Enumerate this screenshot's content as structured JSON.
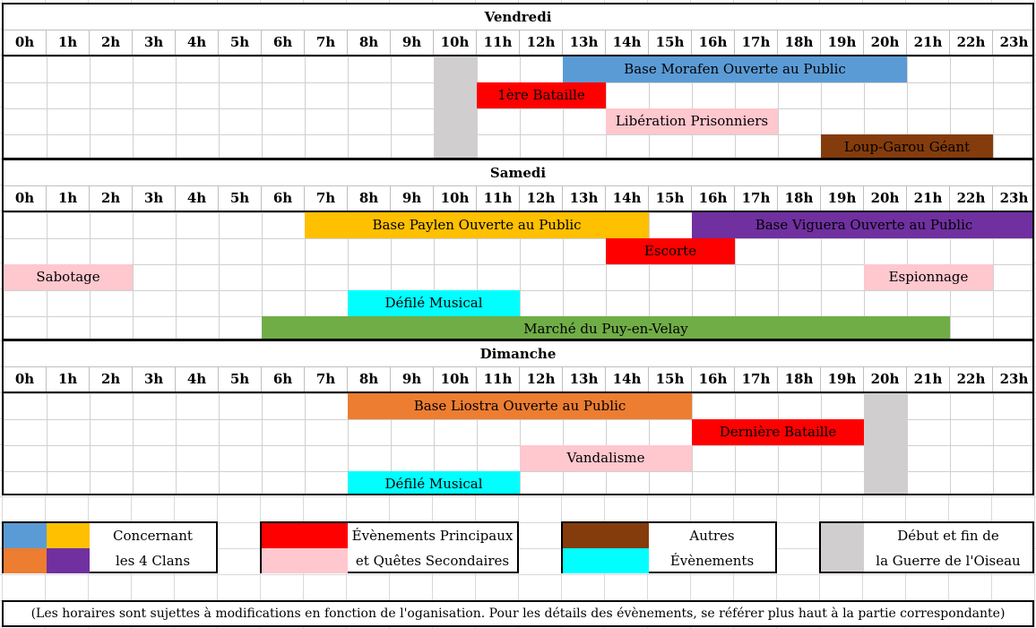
{
  "hours": [
    "0h",
    "1h",
    "2h",
    "3h",
    "4h",
    "5h",
    "6h",
    "7h",
    "8h",
    "9h",
    "10h",
    "11h",
    "12h",
    "13h",
    "14h",
    "15h",
    "16h",
    "17h",
    "18h",
    "19h",
    "20h",
    "21h",
    "22h",
    "23h"
  ],
  "colors": {
    "clan_blue": "#5b9bd5",
    "clan_yellow": "#ffc000",
    "clan_orange": "#ed7d31",
    "clan_purple": "#7030a0",
    "main_red": "#ff0000",
    "side_pink": "#ffc7ce",
    "other_brown": "#843c0c",
    "other_cyan": "#00ffff",
    "war_gray": "#d0cece",
    "market_green": "#70ad47"
  },
  "days": [
    {
      "name": "Vendredi",
      "rows": 4,
      "events": [
        {
          "label": "",
          "start": 10,
          "end": 11,
          "row": 0,
          "rows": 4,
          "color": "#d0cece"
        },
        {
          "label": "Base Morafen Ouverte au Public",
          "start": 13,
          "end": 21,
          "row": 0,
          "color": "#5b9bd5"
        },
        {
          "label": "1ère Bataille",
          "start": 11,
          "end": 14,
          "row": 1,
          "color": "#ff0000"
        },
        {
          "label": "Libération Prisonniers",
          "start": 14,
          "end": 18,
          "row": 2,
          "color": "#ffc7ce"
        },
        {
          "label": "Loup-Garou Géant",
          "start": 19,
          "end": 23,
          "row": 3,
          "color": "#843c0c"
        }
      ]
    },
    {
      "name": "Samedi",
      "rows": 5,
      "events": [
        {
          "label": "Base Paylen Ouverte au Public",
          "start": 7,
          "end": 15,
          "row": 0,
          "color": "#ffc000"
        },
        {
          "label": "Base Viguera Ouverte au Public",
          "start": 16,
          "end": 24,
          "row": 0,
          "color": "#7030a0"
        },
        {
          "label": "Escorte",
          "start": 14,
          "end": 17,
          "row": 1,
          "color": "#ff0000"
        },
        {
          "label": "Sabotage",
          "start": 0,
          "end": 3,
          "row": 2,
          "color": "#ffc7ce"
        },
        {
          "label": "Espionnage",
          "start": 20,
          "end": 23,
          "row": 2,
          "color": "#ffc7ce"
        },
        {
          "label": "Défilé Musical",
          "start": 8,
          "end": 12,
          "row": 3,
          "color": "#00ffff"
        },
        {
          "label": "Marché du Puy-en-Velay",
          "start": 6,
          "end": 22,
          "row": 4,
          "color": "#70ad47"
        }
      ]
    },
    {
      "name": "Dimanche",
      "rows": 4,
      "events": [
        {
          "label": "",
          "start": 20,
          "end": 21,
          "row": 0,
          "rows": 4,
          "color": "#d0cece"
        },
        {
          "label": "Base Liostra Ouverte au Public",
          "start": 8,
          "end": 16,
          "row": 0,
          "color": "#ed7d31"
        },
        {
          "label": "Dernière Bataille",
          "start": 16,
          "end": 20,
          "row": 1,
          "color": "#ff0000"
        },
        {
          "label": "Vandalisme",
          "start": 12,
          "end": 16,
          "row": 2,
          "color": "#ffc7ce"
        },
        {
          "label": "Défilé Musical",
          "start": 8,
          "end": 12,
          "row": 3,
          "color": "#00ffff"
        }
      ]
    }
  ],
  "legend": {
    "clans_line1": "Concernant",
    "clans_line2": "les 4 Clans",
    "main_line1": "Évènements Principaux",
    "main_line2": "et Quêtes Secondaires",
    "other_line1": "Autres",
    "other_line2": "Évènements",
    "war_line1": "Début et fin de",
    "war_line2": "la Guerre de l'Oiseau"
  },
  "footnote": "(Les horaires sont sujettes à modifications en fonction de l'oganisation. Pour les détails des évènements, se référer plus haut à la partie correspondante)"
}
